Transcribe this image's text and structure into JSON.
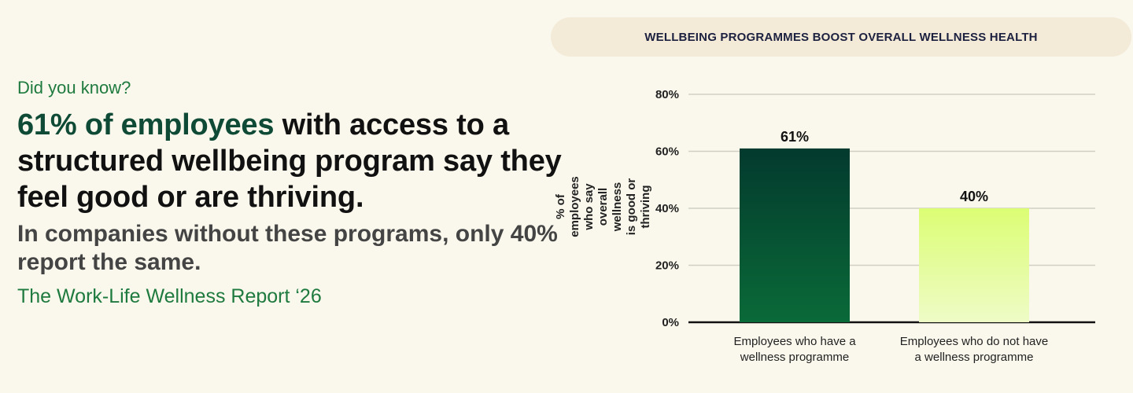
{
  "left": {
    "kicker": "Did you know?",
    "headline_highlight": "61% of employees",
    "headline_rest": " with access to a structured wellbeing program say they feel good or are thriving.",
    "sub": "In companies without these programs, only 40% report the same.",
    "source": "The Work-Life Wellness Report ‘26"
  },
  "colors": {
    "bar1_top": "#033a2e",
    "bar1_bottom": "#0a6a38",
    "bar2_top": "#dcfd74",
    "bar2_bottom": "#eefcc6",
    "grid": "#cfcfc3"
  },
  "chart_data": {
    "type": "bar",
    "title": "WELLBEING PROGRAMMES BOOST OVERALL WELLNESS HEALTH",
    "ylabel": "% of employees who say overall wellness is good or thriving",
    "xlabel": "",
    "ylim": [
      0,
      80
    ],
    "yticks": [
      0,
      20,
      40,
      60,
      80
    ],
    "ytick_labels": [
      "0%",
      "20%",
      "40%",
      "60%",
      "80%"
    ],
    "categories": [
      "Employees who have a wellness programme",
      "Employees who do not have a wellness programme"
    ],
    "values": [
      61,
      40
    ],
    "data_labels": [
      "61%",
      "40%"
    ],
    "grid": true
  }
}
